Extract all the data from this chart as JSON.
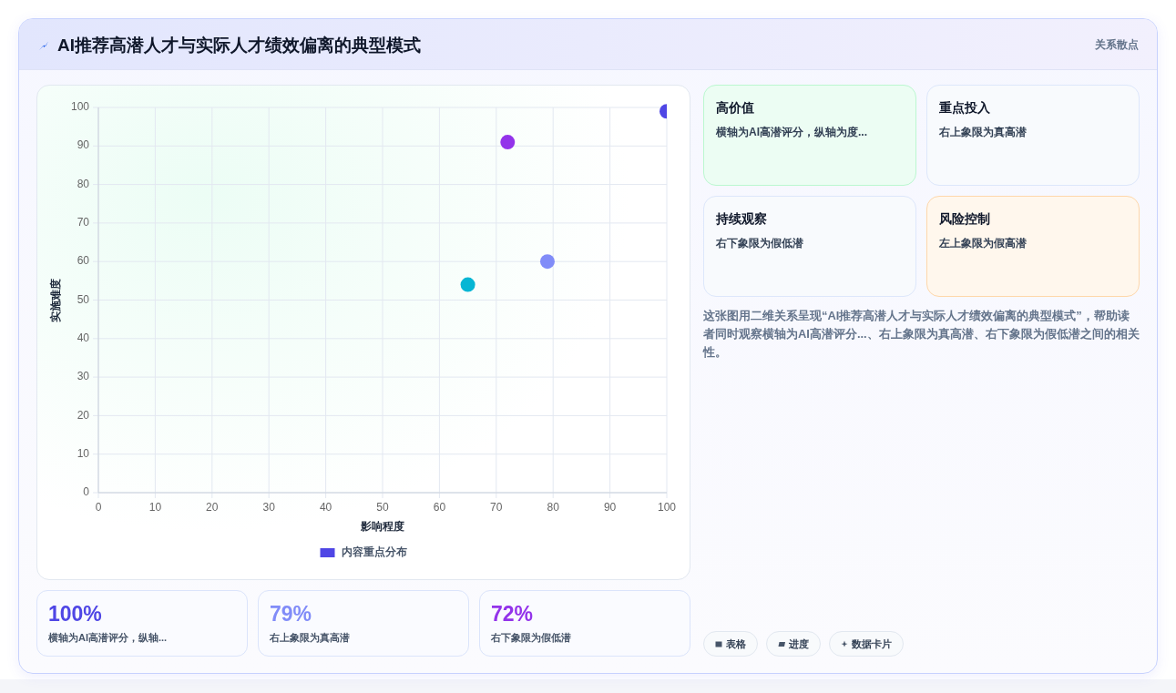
{
  "chart_data": [
    {
      "type": "other",
      "title": "AI推荐高潜人才与实际人才绩效偏离的典型模式",
      "subtitle": "关系散点"
    },
    {
      "type": "scatter",
      "xlabel": "影响程度",
      "ylabel": "实施难度",
      "xlim": [
        0,
        100
      ],
      "ylim": [
        0,
        100
      ],
      "xticks": [
        0,
        10,
        20,
        30,
        40,
        50,
        60,
        70,
        80,
        90,
        100
      ],
      "yticks": [
        0,
        10,
        20,
        30,
        40,
        50,
        60,
        70,
        80,
        90,
        100
      ],
      "grid": true,
      "legend": "bottom",
      "marker": "circle",
      "series": [
        {
          "name": "内容重点分布",
          "x": [
            100,
            72,
            79,
            65
          ],
          "values": [
            99,
            91,
            60,
            54
          ],
          "colors": [
            "#4f46e5",
            "#9333ea",
            "#818cf8",
            "#06b6d4"
          ]
        }
      ]
    },
    {
      "type": "other",
      "title": "高价值",
      "annotations": [
        "横轴为AI高潜评分，纵轴为度..."
      ]
    },
    {
      "type": "other",
      "title": "重点投入",
      "annotations": [
        "右上象限为真高潜"
      ]
    },
    {
      "type": "other",
      "title": "持续观察",
      "annotations": [
        "右下象限为假低潜"
      ]
    },
    {
      "type": "other",
      "title": "风险控制",
      "annotations": [
        "左上象限为假高潜"
      ]
    },
    {
      "type": "other",
      "annotations": [
        "这张图用二维关系呈现“AI推荐高潜人才与实际人才绩效偏离的典型模式”，帮助读者同时观察横轴为AI高潜评分...、右上象限为真高潜、右下象限为假低潜之间的相关性。"
      ]
    },
    {
      "type": "other",
      "categories": [
        "横轴为AI高潜评分，纵轴...",
        "右上象限为真高潜",
        "右下象限为假低潜"
      ],
      "value_labels": [
        "100%",
        "79%",
        "72%"
      ]
    },
    {
      "type": "other",
      "annotations": [
        "表格",
        "进度",
        "数据卡片"
      ]
    }
  ]
}
